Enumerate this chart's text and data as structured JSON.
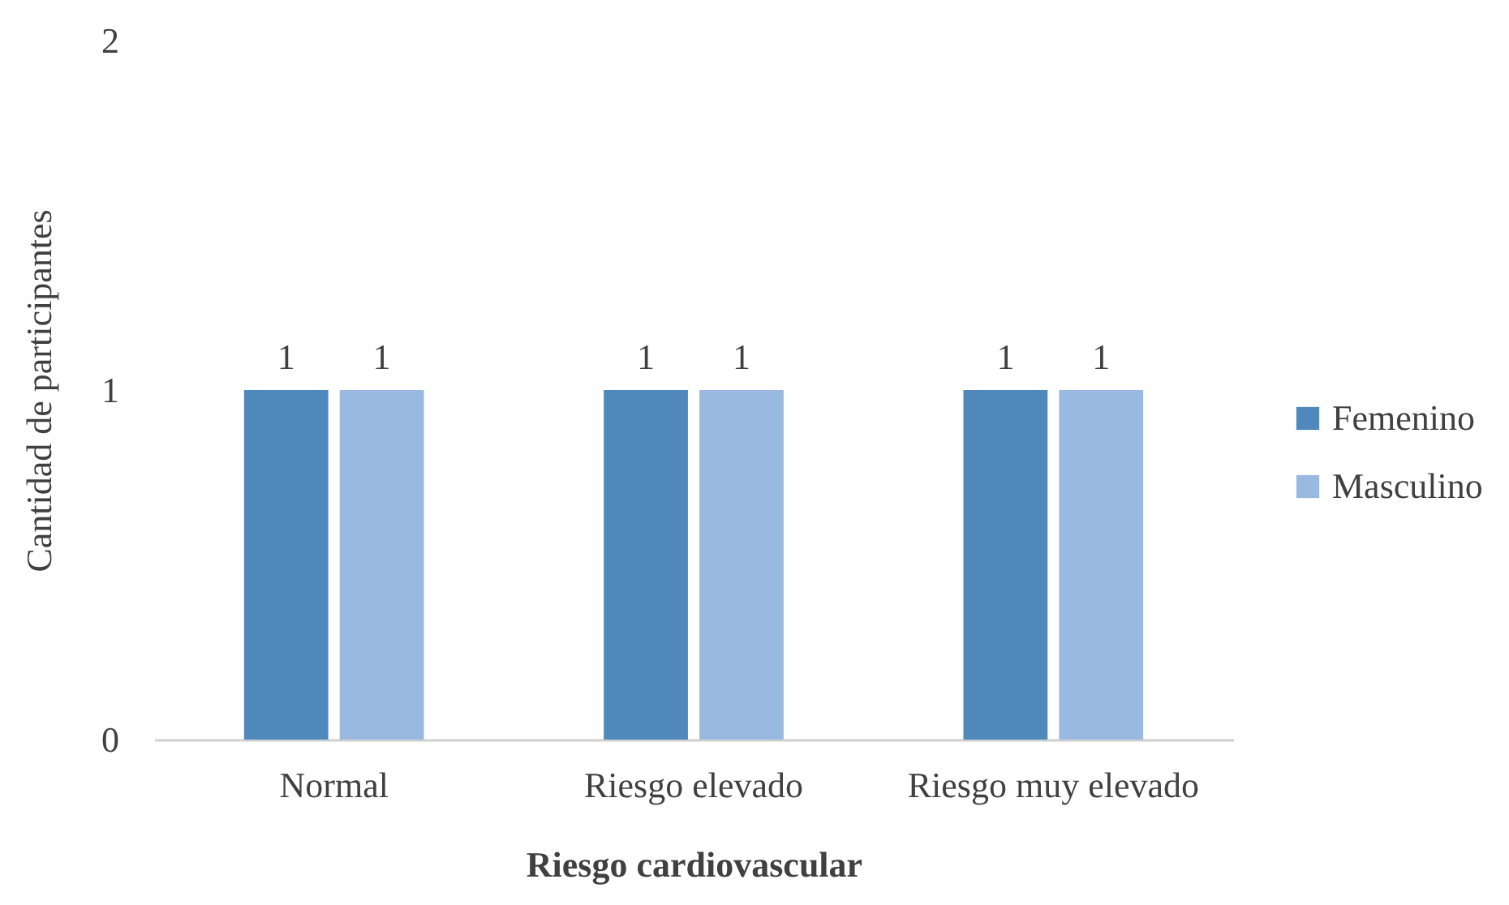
{
  "chart_data": {
    "type": "bar",
    "xlabel": "Riesgo cardiovascular",
    "ylabel": "Cantidad de participantes",
    "categories": [
      "Normal",
      "Riesgo elevado",
      "Riesgo muy elevado"
    ],
    "series": [
      {
        "name": "Femenino",
        "color": "#4f88bb",
        "values": [
          1,
          1,
          1
        ]
      },
      {
        "name": "Masculino",
        "color": "#9ab9e0",
        "values": [
          1,
          1,
          1
        ]
      }
    ],
    "ylim": [
      0,
      2
    ],
    "yticks": [
      0,
      1,
      2
    ],
    "data_labels": true,
    "legend": "right"
  }
}
